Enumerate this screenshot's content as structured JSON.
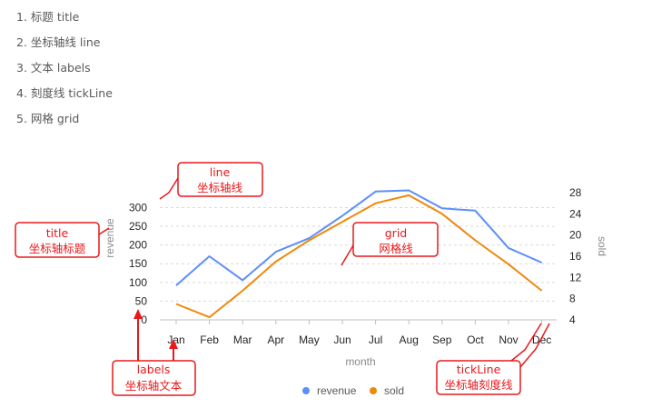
{
  "intro": [
    "1. 标题 title",
    "2. 坐标轴线 line",
    "3. 文本 labels",
    "4. 刻度线 tickLine",
    "5. 网格 grid"
  ],
  "chart_data": {
    "type": "line",
    "categories": [
      "Jan",
      "Feb",
      "Mar",
      "Apr",
      "May",
      "Jun",
      "Jul",
      "Aug",
      "Sep",
      "Oct",
      "Nov",
      "Dec"
    ],
    "xlabel": "month",
    "ylabel": "revenue",
    "y2label": "sold",
    "ylim": [
      0,
      340
    ],
    "y2lim": [
      4,
      28
    ],
    "yticks": [
      0,
      50,
      100,
      150,
      200,
      250,
      300
    ],
    "y2ticks": [
      4,
      8,
      12,
      16,
      20,
      24,
      28
    ],
    "grid": true,
    "legend_position": "bottom",
    "series": [
      {
        "name": "revenue",
        "axis": "left",
        "color": "#5b8ff9",
        "values": [
          92,
          170,
          106,
          182,
          218,
          278,
          343,
          346,
          298,
          292,
          192,
          153
        ]
      },
      {
        "name": "sold",
        "axis": "right",
        "color": "#f0880a",
        "values": [
          7,
          4.5,
          9.5,
          15,
          19,
          22.5,
          26,
          27.5,
          24,
          19,
          14.5,
          9.5
        ]
      }
    ]
  },
  "annotations": [
    {
      "id": "line",
      "color": "#e8181b",
      "text1": "line",
      "text2": "坐标轴线"
    },
    {
      "id": "title",
      "color": "#e8181b",
      "text1": "title",
      "text2": "坐标轴标题"
    },
    {
      "id": "grid",
      "color": "#e8181b",
      "text1": "grid",
      "text2": "网格线"
    },
    {
      "id": "labels",
      "color": "#e8181b",
      "text1": "labels",
      "text2": "坐标轴文本"
    },
    {
      "id": "tickLine",
      "color": "#e8181b",
      "text1": "tickLine",
      "text2": "坐标轴刻度线"
    }
  ]
}
